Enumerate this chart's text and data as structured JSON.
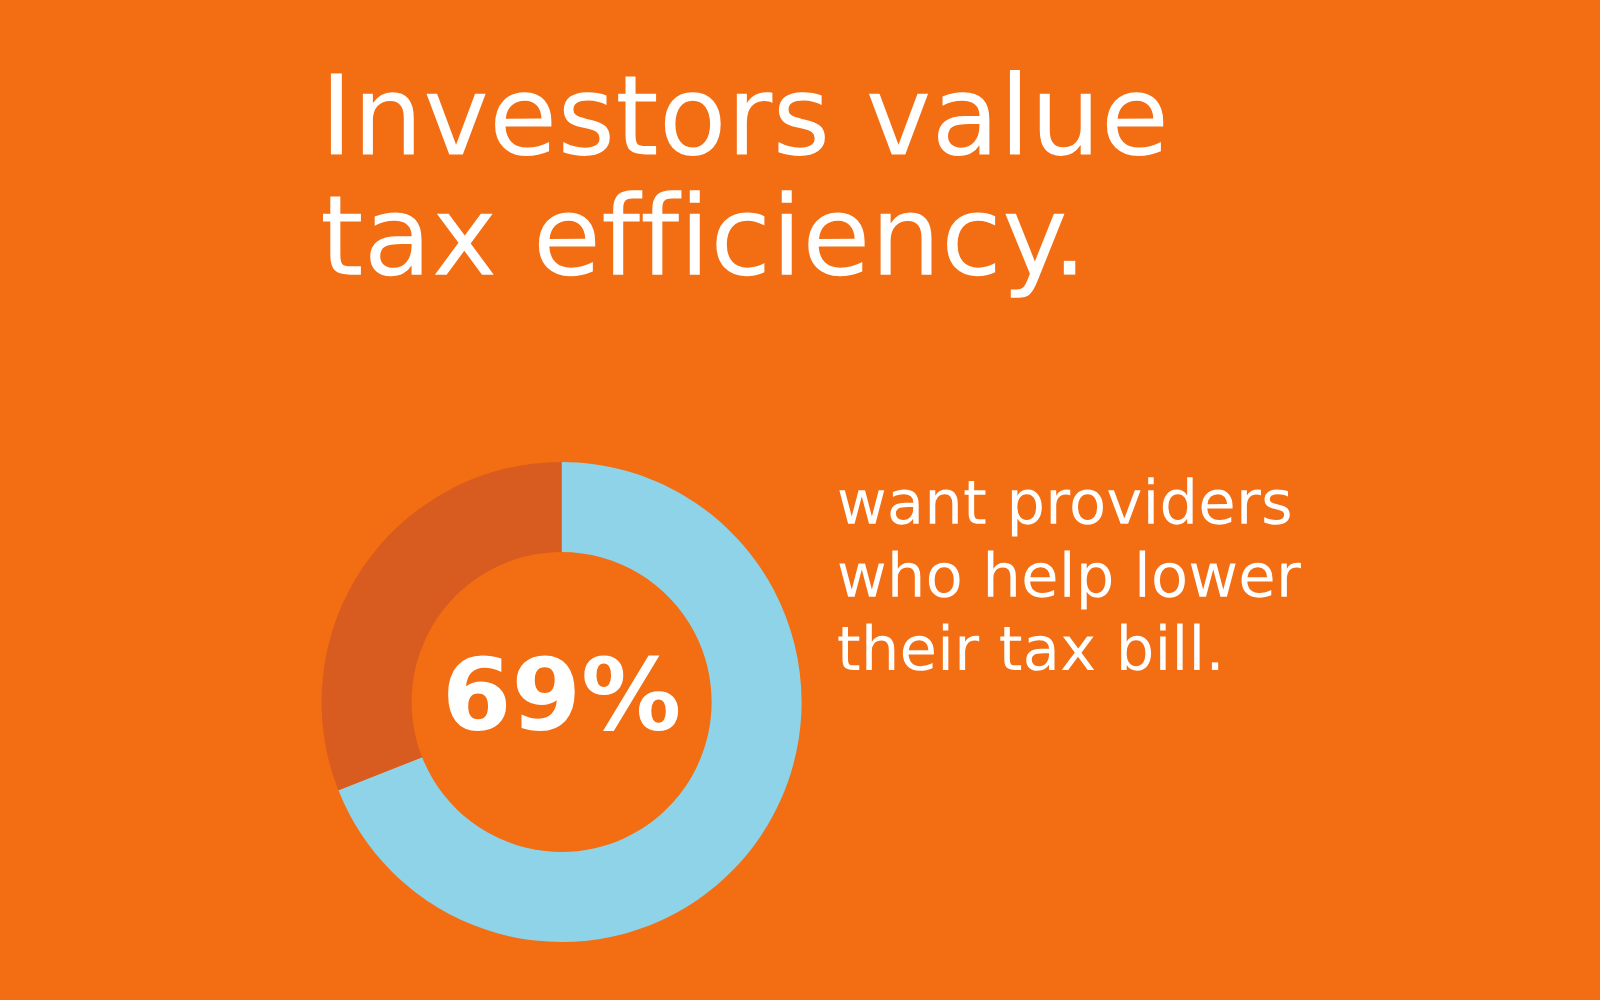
{
  "chart_data": {
    "type": "donut",
    "title": "Investors value\ntax efficiency.",
    "categories": [
      null,
      null
    ],
    "values": [
      69,
      31
    ],
    "colors": [
      "#8ed3e8",
      "#d85c20"
    ],
    "value_labels": [
      "69%",
      null
    ],
    "annotations": [
      "want providers\nwho help lower\ntheir tax bill."
    ],
    "legend": false
  }
}
